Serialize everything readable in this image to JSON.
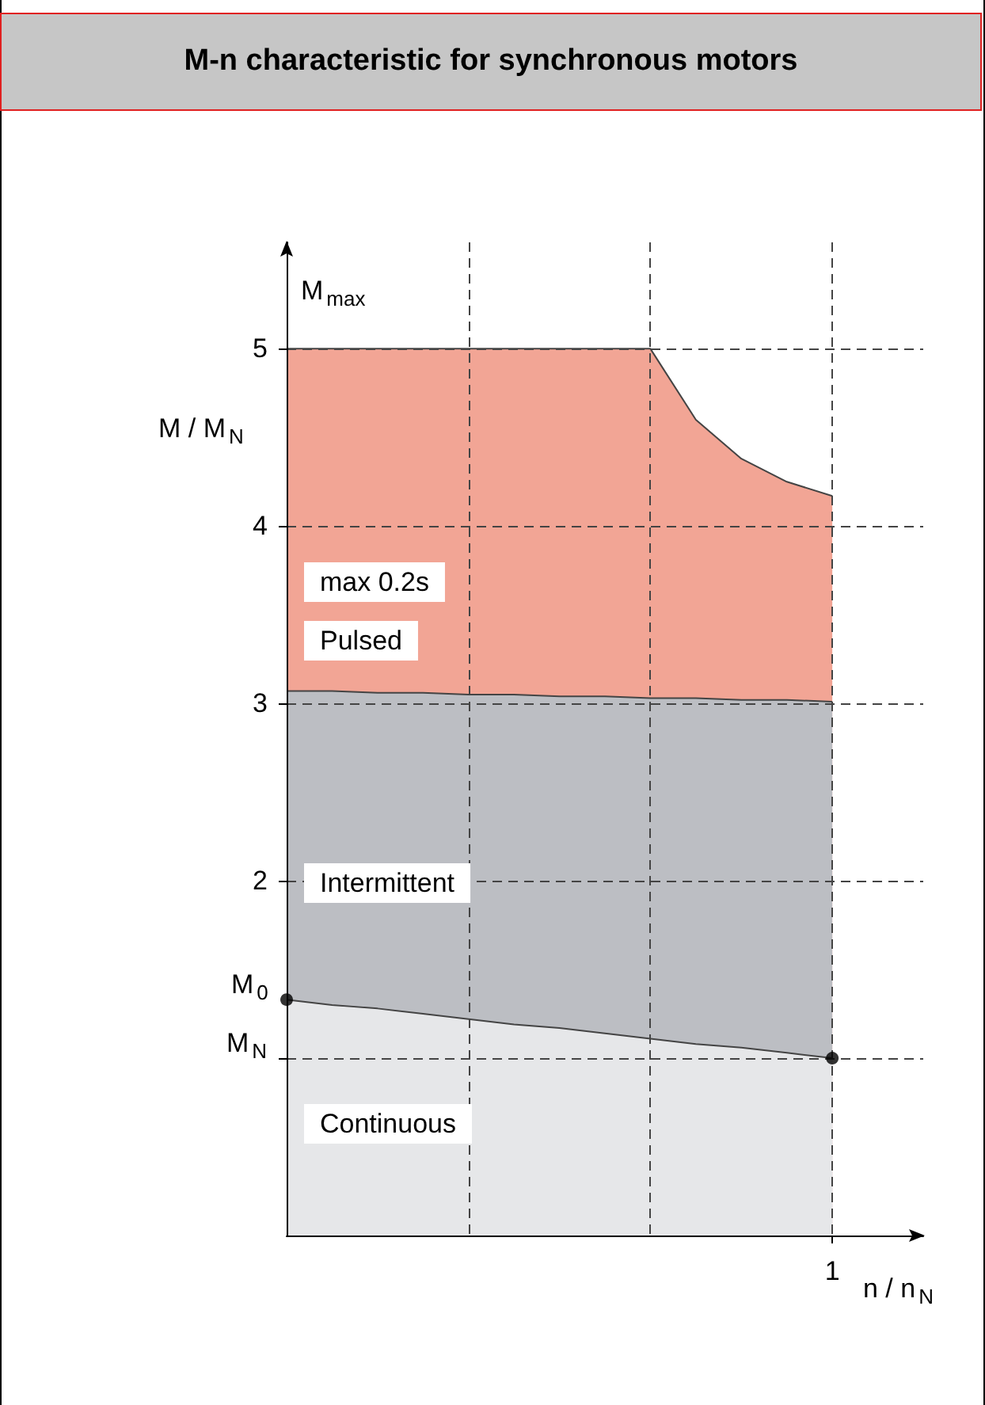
{
  "chart_data": {
    "type": "area",
    "title": "M-n characteristic for synchronous motors",
    "xlabel": "n / n$_{N}$",
    "ylabel": "M / M$_{N}$",
    "categories": [
      null,
      null,
      null,
      null,
      null,
      null,
      null,
      null,
      null,
      null,
      null,
      null,
      "1",
      null,
      null
    ],
    "ylim": [
      0,
      5.6
    ],
    "yticks": [
      {
        "value": 1,
        "label": null
      },
      2,
      3,
      4,
      5
    ],
    "grid": true,
    "marker": "none",
    "series": [
      {
        "color": "#f2a595",
        "values": [
          5,
          5,
          5,
          5,
          5,
          5,
          5,
          5,
          5,
          4.6,
          4.38,
          4.25,
          4.17,
          null,
          null
        ]
      },
      {
        "color": "#bcbec3",
        "values": [
          3.07,
          3.07,
          3.06,
          3.06,
          3.05,
          3.05,
          3.04,
          3.04,
          3.03,
          3.03,
          3.02,
          3.02,
          3.01,
          null,
          null
        ]
      },
      {
        "color": "#e6e7e9",
        "values": [
          1.33,
          1.3,
          1.28,
          1.25,
          1.22,
          1.19,
          1.17,
          1.14,
          1.11,
          1.08,
          1.06,
          1.03,
          1,
          null,
          null
        ]
      },
      {
        "type": "scatter",
        "color": "#000000",
        "marker": "circle",
        "values": [
          1.33,
          null,
          null,
          null,
          null,
          null,
          null,
          null,
          null,
          null,
          null,
          null,
          1,
          null,
          null
        ]
      }
    ],
    "annotations": [
      "M$_{max}$",
      "M$_{0}$",
      "M$_{N}$",
      "max 0.2s",
      "Pulsed",
      "Intermittent",
      "Continuous"
    ]
  }
}
